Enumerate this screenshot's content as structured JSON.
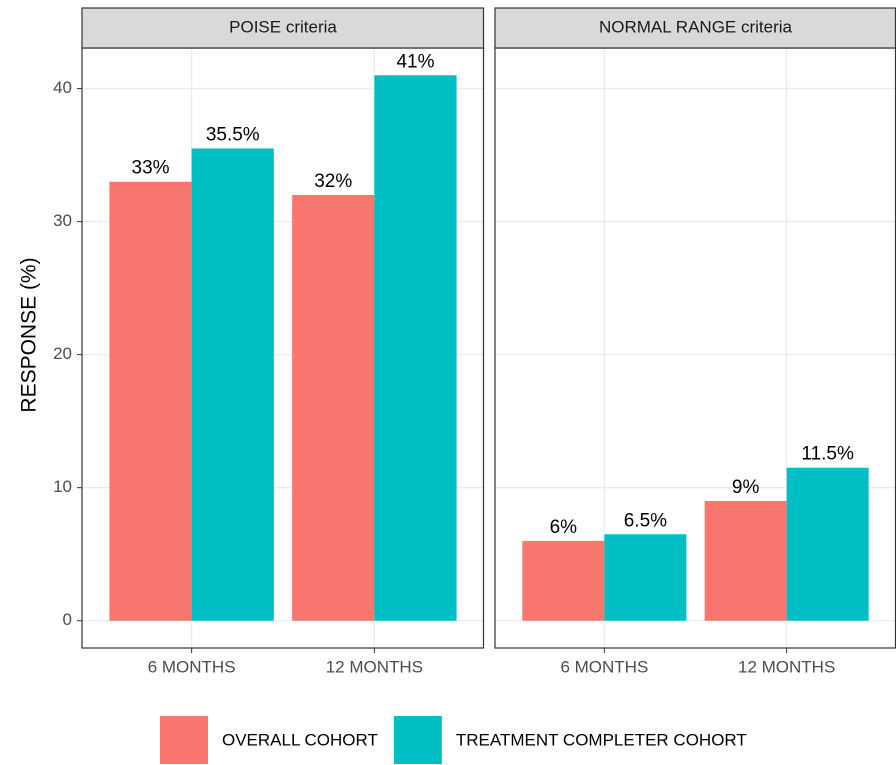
{
  "chart_data": {
    "type": "bar",
    "y_label": "RESPONSE (%)",
    "ylim": [
      -2.05,
      43.05
    ],
    "yticks": [
      0,
      10,
      20,
      30,
      40
    ],
    "grid": true,
    "legend_position": "bottom",
    "series": [
      {
        "name": "OVERALL COHORT",
        "color": "#F8766D"
      },
      {
        "name": "TREATMENT COMPLETER COHORT",
        "color": "#00BFC4"
      }
    ],
    "facets": [
      {
        "title": "POISE criteria",
        "categories": [
          "6 MONTHS",
          "12 MONTHS"
        ],
        "series": [
          {
            "values": [
              33,
              32
            ],
            "value_labels": [
              "33%",
              "32%"
            ]
          },
          {
            "values": [
              35.5,
              41
            ],
            "value_labels": [
              "35.5%",
              "41%"
            ]
          }
        ]
      },
      {
        "title": "NORMAL RANGE criteria",
        "categories": [
          "6 MONTHS",
          "12 MONTHS"
        ],
        "series": [
          {
            "values": [
              6,
              9
            ],
            "value_labels": [
              "6%",
              "9%"
            ]
          },
          {
            "values": [
              6.5,
              11.5
            ],
            "value_labels": [
              "6.5%",
              "11.5%"
            ]
          }
        ]
      }
    ]
  }
}
